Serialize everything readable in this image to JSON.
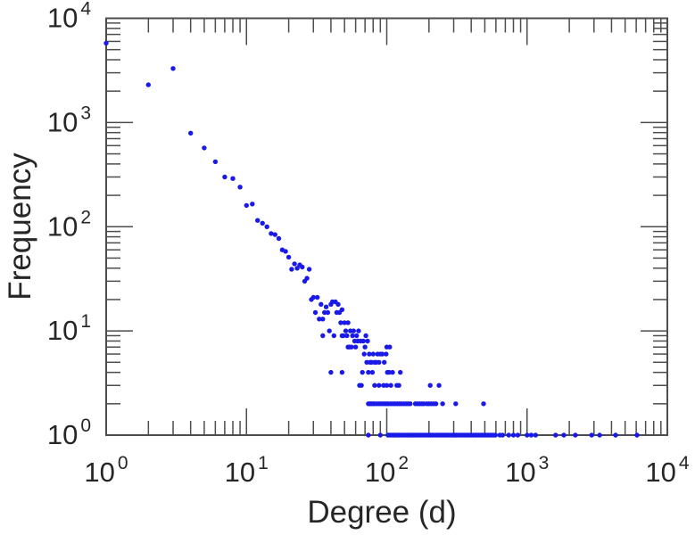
{
  "figure": {
    "background": "#ffffff",
    "axis_color": "#4d4d4d",
    "text_color": "#262626",
    "marker_color": "#1a1ae8"
  },
  "chart_data": {
    "type": "scatter",
    "title": "",
    "xlabel": "Degree (d)",
    "ylabel": "Frequency",
    "x_scale": "log",
    "y_scale": "log",
    "xlim": [
      1,
      10000
    ],
    "ylim": [
      1,
      10000
    ],
    "grid": false,
    "legend": "none",
    "tick_base": "10",
    "x_tick_exponents": [
      0,
      1,
      2,
      3,
      4
    ],
    "y_tick_exponents": [
      0,
      1,
      2,
      3,
      4
    ],
    "marker": {
      "shape": "filled-circle",
      "color": "#1a1ae8",
      "radius": 2.7
    },
    "points": [
      [
        1,
        5770
      ],
      [
        2,
        2300
      ],
      [
        3,
        3300
      ],
      [
        4,
        790
      ],
      [
        5,
        570
      ],
      [
        6,
        420
      ],
      [
        7,
        300
      ],
      [
        8,
        290
      ],
      [
        9,
        240
      ],
      [
        10,
        160
      ],
      [
        11,
        165
      ],
      [
        12,
        115
      ],
      [
        13,
        108
      ],
      [
        14,
        100
      ],
      [
        15,
        86
      ],
      [
        16,
        84
      ],
      [
        17,
        77
      ],
      [
        18,
        60
      ],
      [
        19,
        58
      ],
      [
        20,
        51
      ],
      [
        21,
        39
      ],
      [
        22,
        44
      ],
      [
        23,
        40
      ],
      [
        24,
        43
      ],
      [
        25,
        41
      ],
      [
        26,
        30
      ],
      [
        27,
        32
      ],
      [
        28,
        39
      ],
      [
        29,
        20
      ],
      [
        30,
        21
      ],
      [
        31,
        15
      ],
      [
        32,
        21
      ],
      [
        33,
        13
      ],
      [
        34,
        18
      ],
      [
        35,
        13
      ],
      [
        35,
        9
      ],
      [
        36,
        15
      ],
      [
        37,
        17
      ],
      [
        38,
        15
      ],
      [
        39,
        10
      ],
      [
        40,
        18
      ],
      [
        40,
        4
      ],
      [
        41,
        19
      ],
      [
        42,
        9
      ],
      [
        43,
        19
      ],
      [
        44,
        15
      ],
      [
        45,
        18
      ],
      [
        46,
        15
      ],
      [
        47,
        12
      ],
      [
        48,
        16
      ],
      [
        48,
        9
      ],
      [
        48,
        4
      ],
      [
        49,
        9
      ],
      [
        50,
        12
      ],
      [
        51,
        10
      ],
      [
        52,
        9
      ],
      [
        53,
        12
      ],
      [
        53,
        7
      ],
      [
        54,
        7
      ],
      [
        55,
        10
      ],
      [
        56,
        7
      ],
      [
        57,
        9
      ],
      [
        58,
        10
      ],
      [
        59,
        8
      ],
      [
        60,
        7
      ],
      [
        61,
        9
      ],
      [
        62,
        8
      ],
      [
        63,
        10
      ],
      [
        64,
        3
      ],
      [
        65,
        8
      ],
      [
        66,
        3
      ],
      [
        67,
        4
      ],
      [
        68,
        8
      ],
      [
        69,
        6
      ],
      [
        70,
        7
      ],
      [
        71,
        9
      ],
      [
        72,
        5
      ],
      [
        73,
        8
      ],
      [
        74,
        4
      ],
      [
        75,
        6
      ],
      [
        76,
        5
      ],
      [
        78,
        5
      ],
      [
        79,
        4
      ],
      [
        80,
        6
      ],
      [
        82,
        5
      ],
      [
        82,
        3
      ],
      [
        84,
        5
      ],
      [
        86,
        6
      ],
      [
        88,
        5
      ],
      [
        88,
        3
      ],
      [
        90,
        6
      ],
      [
        93,
        6
      ],
      [
        95,
        3
      ],
      [
        96,
        5
      ],
      [
        99,
        6
      ],
      [
        100,
        7
      ],
      [
        100,
        3
      ],
      [
        101,
        4
      ],
      [
        104,
        4
      ],
      [
        105,
        7
      ],
      [
        107,
        3
      ],
      [
        110,
        4
      ],
      [
        118,
        3
      ],
      [
        122,
        3
      ],
      [
        125,
        4
      ],
      [
        204,
        3
      ],
      [
        236,
        3
      ],
      [
        74,
        2
      ],
      [
        76,
        2
      ],
      [
        78,
        2
      ],
      [
        80,
        2
      ],
      [
        82,
        2
      ],
      [
        85,
        2
      ],
      [
        88,
        2
      ],
      [
        91,
        2
      ],
      [
        94,
        2
      ],
      [
        97,
        2
      ],
      [
        100,
        2
      ],
      [
        103,
        2
      ],
      [
        107,
        2
      ],
      [
        111,
        2
      ],
      [
        115,
        2
      ],
      [
        119,
        2
      ],
      [
        123,
        2
      ],
      [
        127,
        2
      ],
      [
        132,
        2
      ],
      [
        137,
        2
      ],
      [
        142,
        2
      ],
      [
        147,
        2
      ],
      [
        160,
        2
      ],
      [
        166,
        2
      ],
      [
        172,
        2
      ],
      [
        178,
        2
      ],
      [
        184,
        2
      ],
      [
        193,
        2
      ],
      [
        200,
        2
      ],
      [
        208,
        2
      ],
      [
        216,
        2
      ],
      [
        224,
        2
      ],
      [
        250,
        2
      ],
      [
        310,
        2
      ],
      [
        490,
        2
      ],
      [
        74,
        1
      ],
      [
        90,
        1
      ],
      [
        102,
        1
      ],
      [
        105,
        1
      ],
      [
        108,
        1
      ],
      [
        111,
        1
      ],
      [
        114,
        1
      ],
      [
        117,
        1
      ],
      [
        120,
        1
      ],
      [
        123,
        1
      ],
      [
        127,
        1
      ],
      [
        131,
        1
      ],
      [
        135,
        1
      ],
      [
        139,
        1
      ],
      [
        143,
        1
      ],
      [
        147,
        1
      ],
      [
        151,
        1
      ],
      [
        156,
        1
      ],
      [
        161,
        1
      ],
      [
        166,
        1
      ],
      [
        171,
        1
      ],
      [
        176,
        1
      ],
      [
        181,
        1
      ],
      [
        187,
        1
      ],
      [
        193,
        1
      ],
      [
        199,
        1
      ],
      [
        205,
        1
      ],
      [
        211,
        1
      ],
      [
        218,
        1
      ],
      [
        225,
        1
      ],
      [
        232,
        1
      ],
      [
        239,
        1
      ],
      [
        246,
        1
      ],
      [
        254,
        1
      ],
      [
        262,
        1
      ],
      [
        270,
        1
      ],
      [
        278,
        1
      ],
      [
        287,
        1
      ],
      [
        296,
        1
      ],
      [
        305,
        1
      ],
      [
        314,
        1
      ],
      [
        324,
        1
      ],
      [
        334,
        1
      ],
      [
        344,
        1
      ],
      [
        355,
        1
      ],
      [
        366,
        1
      ],
      [
        377,
        1
      ],
      [
        389,
        1
      ],
      [
        401,
        1
      ],
      [
        413,
        1
      ],
      [
        426,
        1
      ],
      [
        439,
        1
      ],
      [
        453,
        1
      ],
      [
        467,
        1
      ],
      [
        481,
        1
      ],
      [
        496,
        1
      ],
      [
        511,
        1
      ],
      [
        527,
        1
      ],
      [
        543,
        1
      ],
      [
        560,
        1
      ],
      [
        577,
        1
      ],
      [
        595,
        1
      ],
      [
        640,
        1
      ],
      [
        670,
        1
      ],
      [
        740,
        1
      ],
      [
        800,
        1
      ],
      [
        860,
        1
      ],
      [
        1000,
        1
      ],
      [
        1070,
        1
      ],
      [
        1150,
        1
      ],
      [
        1600,
        1
      ],
      [
        1830,
        1
      ],
      [
        2210,
        1
      ],
      [
        2890,
        1
      ],
      [
        3290,
        1
      ],
      [
        4280,
        1
      ],
      [
        6080,
        1
      ]
    ]
  }
}
